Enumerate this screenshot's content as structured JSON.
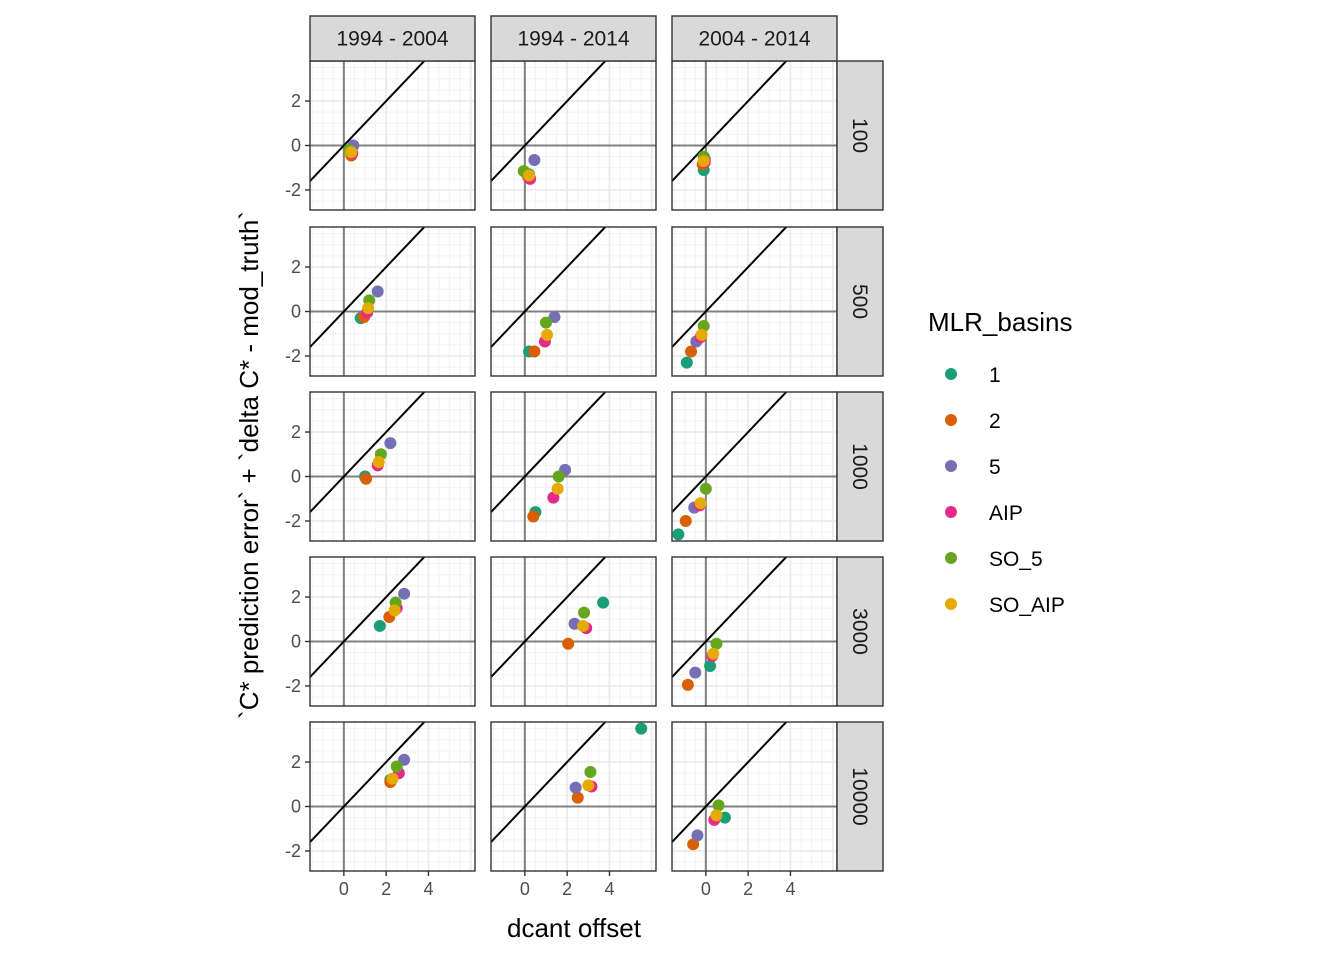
{
  "chart_data": {
    "type": "scatter",
    "facet_columns": [
      "1994 - 2004",
      "1994 - 2014",
      "2004 - 2014"
    ],
    "facet_rows": [
      "100",
      "500",
      "1000",
      "3000",
      "10000"
    ],
    "xlabel": "dcant offset",
    "ylabel": "`C* prediction error` + `delta C* - mod_truth`",
    "xlim": [
      -1.6,
      6.2
    ],
    "ylim": [
      -2.9,
      3.8
    ],
    "x_ticks": [
      "0",
      "2",
      "4"
    ],
    "y_ticks": [
      "-2",
      "0",
      "2"
    ],
    "grid": true,
    "reference_lines": [
      "x = 0",
      "y = 0",
      "y = x"
    ],
    "legend": {
      "title": "MLR_basins",
      "position": "right",
      "entries": [
        "1",
        "2",
        "5",
        "AIP",
        "SO_5",
        "SO_AIP"
      ]
    },
    "colors": {
      "1": "#1b9e77",
      "2": "#d95f02",
      "5": "#7570b3",
      "AIP": "#e7298a",
      "SO_5": "#66a61e",
      "SO_AIP": "#e6ab02"
    },
    "series": [
      {
        "name": "1",
        "points": [
          {
            "col": "1994 - 2004",
            "row": "100",
            "x": 0.3,
            "y": -0.2
          },
          {
            "col": "1994 - 2014",
            "row": "100",
            "x": 0.2,
            "y": -1.3
          },
          {
            "col": "2004 - 2014",
            "row": "100",
            "x": -0.1,
            "y": -1.1
          },
          {
            "col": "1994 - 2004",
            "row": "500",
            "x": 0.8,
            "y": -0.3
          },
          {
            "col": "1994 - 2014",
            "row": "500",
            "x": 0.2,
            "y": -1.8
          },
          {
            "col": "2004 - 2014",
            "row": "500",
            "x": -0.9,
            "y": -2.3
          },
          {
            "col": "1994 - 2004",
            "row": "1000",
            "x": 1.0,
            "y": 0.0
          },
          {
            "col": "1994 - 2014",
            "row": "1000",
            "x": 0.5,
            "y": -1.6
          },
          {
            "col": "2004 - 2014",
            "row": "1000",
            "x": -1.3,
            "y": -2.6
          },
          {
            "col": "1994 - 2004",
            "row": "3000",
            "x": 1.7,
            "y": 0.7
          },
          {
            "col": "1994 - 2014",
            "row": "3000",
            "x": 3.7,
            "y": 1.75
          },
          {
            "col": "2004 - 2014",
            "row": "3000",
            "x": 0.2,
            "y": -1.1
          },
          {
            "col": "1994 - 2004",
            "row": "10000",
            "x": 2.2,
            "y": 1.2
          },
          {
            "col": "1994 - 2014",
            "row": "10000",
            "x": 5.5,
            "y": 3.5
          },
          {
            "col": "2004 - 2014",
            "row": "10000",
            "x": 0.9,
            "y": -0.5
          }
        ]
      },
      {
        "name": "2",
        "points": [
          {
            "col": "1994 - 2004",
            "row": "100",
            "x": 0.35,
            "y": -0.45
          },
          {
            "col": "1994 - 2014",
            "row": "100",
            "x": 0.15,
            "y": -1.4
          },
          {
            "col": "2004 - 2014",
            "row": "100",
            "x": -0.15,
            "y": -0.85
          },
          {
            "col": "1994 - 2004",
            "row": "500",
            "x": 0.95,
            "y": -0.25
          },
          {
            "col": "1994 - 2014",
            "row": "500",
            "x": 0.45,
            "y": -1.8
          },
          {
            "col": "2004 - 2014",
            "row": "500",
            "x": -0.7,
            "y": -1.8
          },
          {
            "col": "1994 - 2004",
            "row": "1000",
            "x": 1.05,
            "y": -0.1
          },
          {
            "col": "1994 - 2014",
            "row": "1000",
            "x": 0.4,
            "y": -1.8
          },
          {
            "col": "2004 - 2014",
            "row": "1000",
            "x": -0.95,
            "y": -2.0
          },
          {
            "col": "1994 - 2004",
            "row": "3000",
            "x": 2.15,
            "y": 1.1
          },
          {
            "col": "1994 - 2014",
            "row": "3000",
            "x": 2.05,
            "y": -0.1
          },
          {
            "col": "2004 - 2014",
            "row": "3000",
            "x": -0.85,
            "y": -1.95
          },
          {
            "col": "1994 - 2004",
            "row": "10000",
            "x": 2.2,
            "y": 1.1
          },
          {
            "col": "1994 - 2014",
            "row": "10000",
            "x": 2.5,
            "y": 0.4
          },
          {
            "col": "2004 - 2014",
            "row": "10000",
            "x": -0.6,
            "y": -1.7
          }
        ]
      },
      {
        "name": "5",
        "points": [
          {
            "col": "1994 - 2004",
            "row": "100",
            "x": 0.45,
            "y": 0.0
          },
          {
            "col": "1994 - 2014",
            "row": "100",
            "x": 0.45,
            "y": -0.65
          },
          {
            "col": "2004 - 2014",
            "row": "100",
            "x": -0.05,
            "y": -0.6
          },
          {
            "col": "1994 - 2004",
            "row": "500",
            "x": 1.6,
            "y": 0.9
          },
          {
            "col": "1994 - 2014",
            "row": "500",
            "x": 1.4,
            "y": -0.25
          },
          {
            "col": "2004 - 2014",
            "row": "500",
            "x": -0.45,
            "y": -1.35
          },
          {
            "col": "1994 - 2004",
            "row": "1000",
            "x": 2.2,
            "y": 1.5
          },
          {
            "col": "1994 - 2014",
            "row": "1000",
            "x": 1.9,
            "y": 0.3
          },
          {
            "col": "2004 - 2014",
            "row": "1000",
            "x": -0.55,
            "y": -1.4
          },
          {
            "col": "1994 - 2004",
            "row": "3000",
            "x": 2.85,
            "y": 2.15
          },
          {
            "col": "1994 - 2014",
            "row": "3000",
            "x": 2.35,
            "y": 0.8
          },
          {
            "col": "2004 - 2014",
            "row": "3000",
            "x": -0.5,
            "y": -1.4
          },
          {
            "col": "1994 - 2004",
            "row": "10000",
            "x": 2.85,
            "y": 2.1
          },
          {
            "col": "1994 - 2014",
            "row": "10000",
            "x": 2.4,
            "y": 0.85
          },
          {
            "col": "2004 - 2014",
            "row": "10000",
            "x": -0.4,
            "y": -1.3
          }
        ]
      },
      {
        "name": "AIP",
        "points": [
          {
            "col": "1994 - 2004",
            "row": "100",
            "x": 0.4,
            "y": -0.35
          },
          {
            "col": "1994 - 2014",
            "row": "100",
            "x": 0.25,
            "y": -1.5
          },
          {
            "col": "2004 - 2014",
            "row": "100",
            "x": -0.05,
            "y": -0.75
          },
          {
            "col": "1994 - 2004",
            "row": "500",
            "x": 1.1,
            "y": -0.05
          },
          {
            "col": "1994 - 2014",
            "row": "500",
            "x": 0.95,
            "y": -1.35
          },
          {
            "col": "2004 - 2014",
            "row": "500",
            "x": -0.25,
            "y": -1.15
          },
          {
            "col": "1994 - 2004",
            "row": "1000",
            "x": 1.6,
            "y": 0.5
          },
          {
            "col": "1994 - 2014",
            "row": "1000",
            "x": 1.35,
            "y": -0.95
          },
          {
            "col": "2004 - 2014",
            "row": "1000",
            "x": -0.3,
            "y": -1.3
          },
          {
            "col": "1994 - 2004",
            "row": "3000",
            "x": 2.5,
            "y": 1.5
          },
          {
            "col": "1994 - 2014",
            "row": "3000",
            "x": 2.9,
            "y": 0.6
          },
          {
            "col": "2004 - 2014",
            "row": "3000",
            "x": 0.3,
            "y": -0.65
          },
          {
            "col": "1994 - 2004",
            "row": "10000",
            "x": 2.6,
            "y": 1.5
          },
          {
            "col": "1994 - 2014",
            "row": "10000",
            "x": 3.15,
            "y": 0.9
          },
          {
            "col": "2004 - 2014",
            "row": "10000",
            "x": 0.4,
            "y": -0.6
          }
        ]
      },
      {
        "name": "SO_5",
        "points": [
          {
            "col": "1994 - 2004",
            "row": "100",
            "x": 0.25,
            "y": -0.2
          },
          {
            "col": "1994 - 2014",
            "row": "100",
            "x": -0.05,
            "y": -1.15
          },
          {
            "col": "2004 - 2014",
            "row": "100",
            "x": -0.1,
            "y": -0.5
          },
          {
            "col": "1994 - 2004",
            "row": "500",
            "x": 1.2,
            "y": 0.5
          },
          {
            "col": "1994 - 2014",
            "row": "500",
            "x": 1.0,
            "y": -0.5
          },
          {
            "col": "2004 - 2014",
            "row": "500",
            "x": -0.1,
            "y": -0.65
          },
          {
            "col": "1994 - 2004",
            "row": "1000",
            "x": 1.75,
            "y": 1.0
          },
          {
            "col": "1994 - 2014",
            "row": "1000",
            "x": 1.6,
            "y": 0.0
          },
          {
            "col": "2004 - 2014",
            "row": "1000",
            "x": 0.0,
            "y": -0.55
          },
          {
            "col": "1994 - 2004",
            "row": "3000",
            "x": 2.45,
            "y": 1.75
          },
          {
            "col": "1994 - 2014",
            "row": "3000",
            "x": 2.8,
            "y": 1.3
          },
          {
            "col": "2004 - 2014",
            "row": "3000",
            "x": 0.5,
            "y": -0.1
          },
          {
            "col": "1994 - 2004",
            "row": "10000",
            "x": 2.5,
            "y": 1.8
          },
          {
            "col": "1994 - 2014",
            "row": "10000",
            "x": 3.1,
            "y": 1.55
          },
          {
            "col": "2004 - 2014",
            "row": "10000",
            "x": 0.6,
            "y": 0.05
          }
        ]
      },
      {
        "name": "SO_AIP",
        "points": [
          {
            "col": "1994 - 2004",
            "row": "100",
            "x": 0.35,
            "y": -0.3
          },
          {
            "col": "1994 - 2014",
            "row": "100",
            "x": 0.2,
            "y": -1.35
          },
          {
            "col": "2004 - 2014",
            "row": "100",
            "x": -0.1,
            "y": -0.7
          },
          {
            "col": "1994 - 2004",
            "row": "500",
            "x": 1.15,
            "y": 0.15
          },
          {
            "col": "1994 - 2014",
            "row": "500",
            "x": 1.05,
            "y": -1.05
          },
          {
            "col": "2004 - 2014",
            "row": "500",
            "x": -0.2,
            "y": -1.05
          },
          {
            "col": "1994 - 2004",
            "row": "1000",
            "x": 1.65,
            "y": 0.65
          },
          {
            "col": "1994 - 2014",
            "row": "1000",
            "x": 1.55,
            "y": -0.55
          },
          {
            "col": "2004 - 2014",
            "row": "1000",
            "x": -0.25,
            "y": -1.2
          },
          {
            "col": "1994 - 2004",
            "row": "3000",
            "x": 2.4,
            "y": 1.4
          },
          {
            "col": "1994 - 2014",
            "row": "3000",
            "x": 2.75,
            "y": 0.7
          },
          {
            "col": "2004 - 2014",
            "row": "3000",
            "x": 0.35,
            "y": -0.55
          },
          {
            "col": "1994 - 2004",
            "row": "10000",
            "x": 2.3,
            "y": 1.25
          },
          {
            "col": "1994 - 2014",
            "row": "10000",
            "x": 3.0,
            "y": 0.95
          },
          {
            "col": "2004 - 2014",
            "row": "10000",
            "x": 0.5,
            "y": -0.4
          }
        ]
      }
    ]
  }
}
